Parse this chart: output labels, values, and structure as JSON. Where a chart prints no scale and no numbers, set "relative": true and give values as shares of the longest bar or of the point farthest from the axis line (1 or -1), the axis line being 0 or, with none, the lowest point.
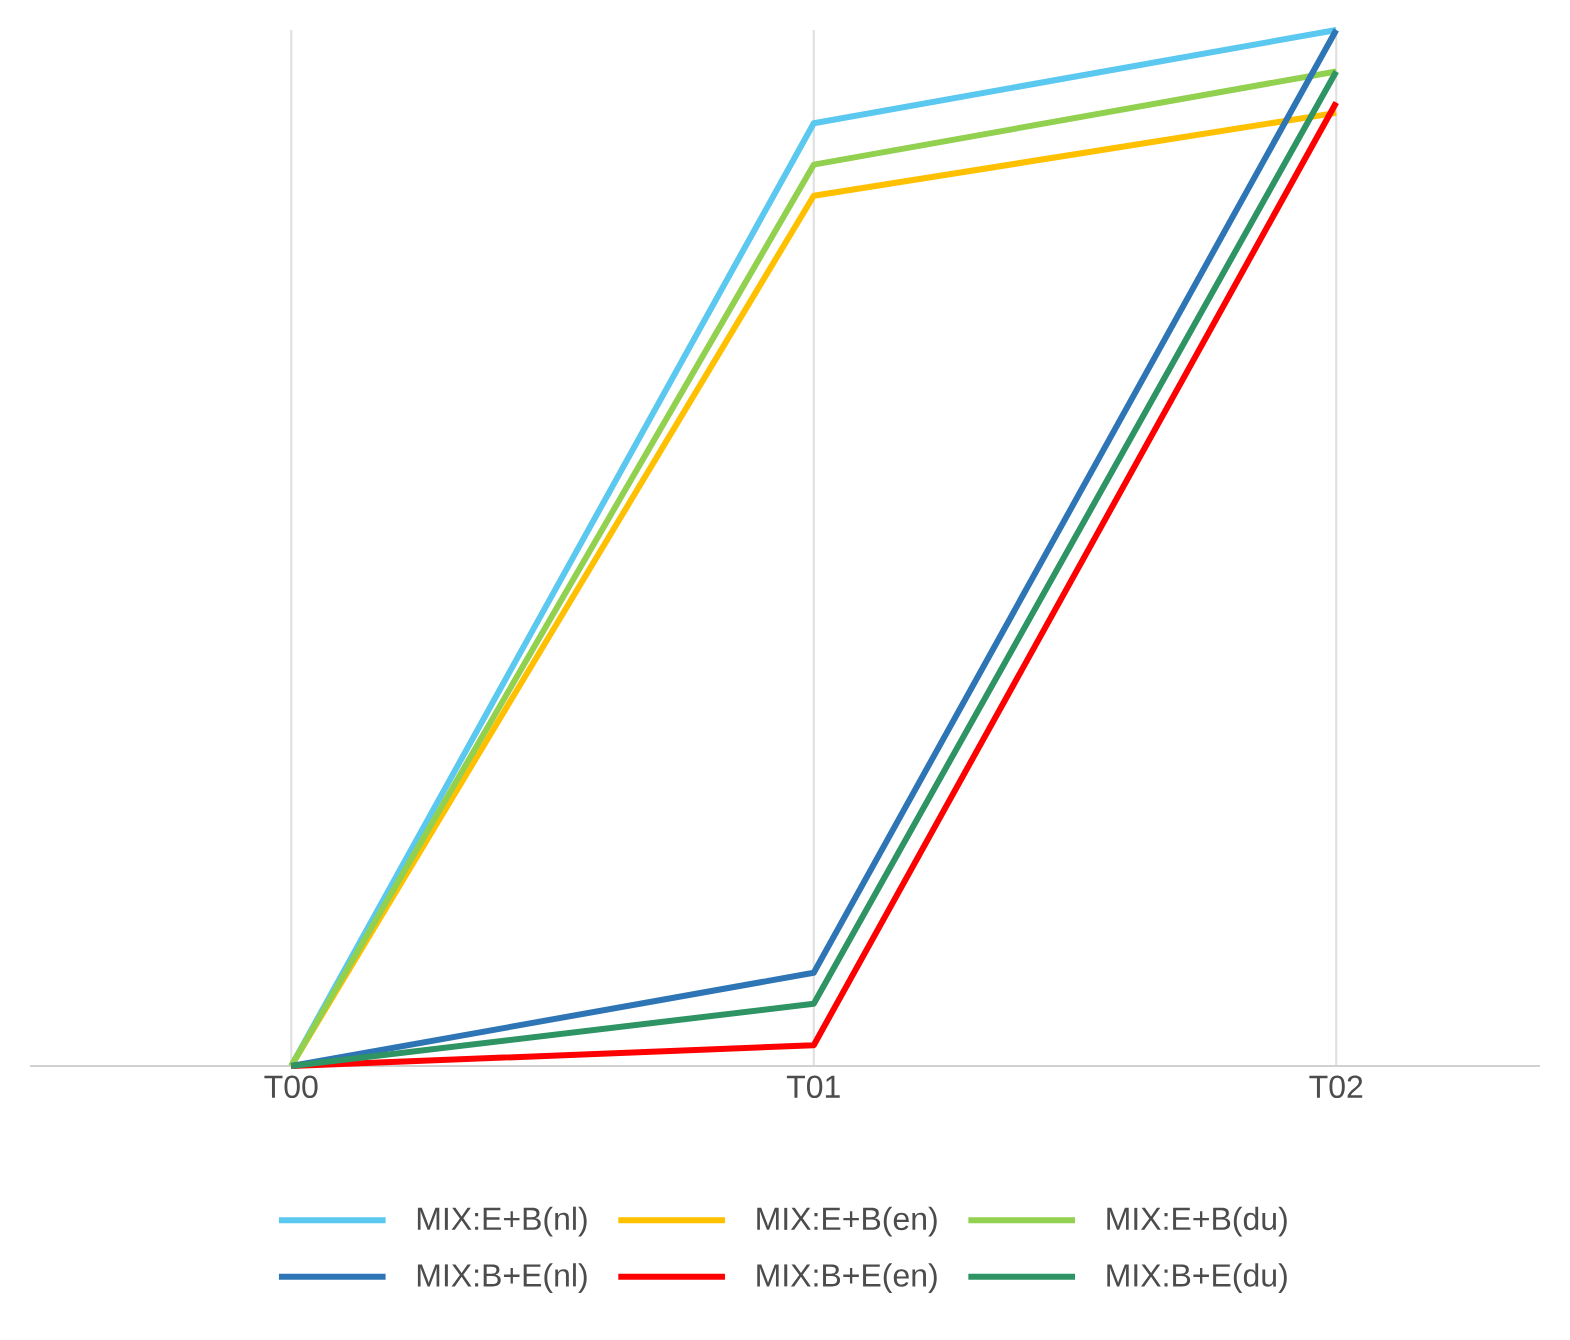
{
  "chart_data": {
    "type": "line",
    "relative": true,
    "categories": [
      "T00",
      "T01",
      "T02"
    ],
    "grid": "x",
    "legend": "bottom",
    "marker": "none",
    "line_style": "solid",
    "series": [
      {
        "name": "MIX:E+B(nl)",
        "color": "#5bc8f0",
        "values": [
          0,
          0.91,
          1
        ]
      },
      {
        "name": "MIX:E+B(en)",
        "color": "#ffc000",
        "values": [
          0,
          0.84,
          0.92
        ]
      },
      {
        "name": "MIX:E+B(du)",
        "color": "#92d050",
        "values": [
          0,
          0.87,
          0.96
        ]
      },
      {
        "name": "MIX:B+E(nl)",
        "color": "#2e75b6",
        "values": [
          0,
          0.09,
          1
        ]
      },
      {
        "name": "MIX:B+E(en)",
        "color": "#ff0000",
        "values": [
          0,
          0.02,
          0.93
        ]
      },
      {
        "name": "MIX:B+E(du)",
        "color": "#2e9464",
        "values": [
          0,
          0.06,
          0.96
        ]
      }
    ]
  }
}
